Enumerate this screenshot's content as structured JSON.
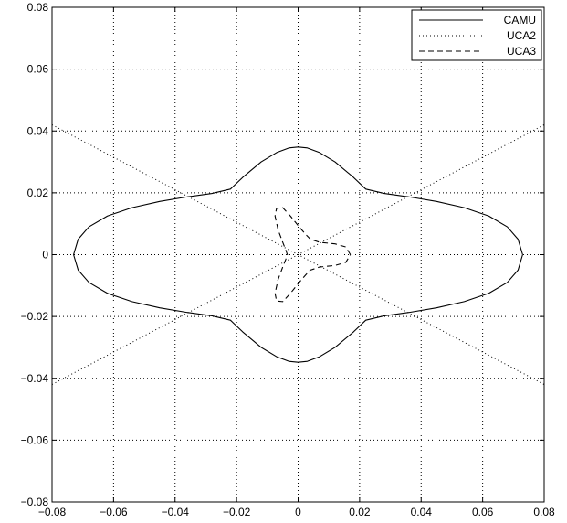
{
  "chart_data": {
    "type": "line",
    "title": "",
    "xlabel": "",
    "ylabel": "",
    "xlim": [
      -0.08,
      0.08
    ],
    "ylim": [
      -0.08,
      0.08
    ],
    "grid": true,
    "grid_style": "dotted",
    "legend_position": "top-right",
    "xticks": [
      {
        "value": -0.08,
        "label": "−0.08"
      },
      {
        "value": -0.06,
        "label": "−0.06"
      },
      {
        "value": -0.04,
        "label": "−0.04"
      },
      {
        "value": -0.02,
        "label": "−0.02"
      },
      {
        "value": 0,
        "label": "0"
      },
      {
        "value": 0.02,
        "label": "0.02"
      },
      {
        "value": 0.04,
        "label": "0.04"
      },
      {
        "value": 0.06,
        "label": "0.06"
      },
      {
        "value": 0.08,
        "label": "0.08"
      }
    ],
    "yticks": [
      {
        "value": -0.08,
        "label": "−0.08"
      },
      {
        "value": -0.06,
        "label": "−0.06"
      },
      {
        "value": -0.04,
        "label": "−0.04"
      },
      {
        "value": -0.02,
        "label": "−0.02"
      },
      {
        "value": 0,
        "label": "0"
      },
      {
        "value": 0.02,
        "label": "0.02"
      },
      {
        "value": 0.04,
        "label": "0.04"
      },
      {
        "value": 0.06,
        "label": "0.06"
      },
      {
        "value": 0.08,
        "label": "0.08"
      }
    ],
    "series": [
      {
        "name": "CAMU",
        "style": "solid",
        "color": "#000000",
        "x": [
          0.073,
          0.0715,
          0.068,
          0.062,
          0.054,
          0.045,
          0.036,
          0.028,
          0.022,
          0.018,
          0.012,
          0.007,
          0.003,
          0,
          -0.003,
          -0.007,
          -0.012,
          -0.018,
          -0.022,
          -0.028,
          -0.036,
          -0.045,
          -0.054,
          -0.062,
          -0.068,
          -0.0715,
          -0.073,
          -0.0715,
          -0.068,
          -0.062,
          -0.054,
          -0.045,
          -0.036,
          -0.028,
          -0.022,
          -0.018,
          -0.012,
          -0.007,
          -0.003,
          0,
          0.003,
          0.007,
          0.012,
          0.018,
          0.022,
          0.028,
          0.036,
          0.045,
          0.054,
          0.062,
          0.068,
          0.0715,
          0.073
        ],
        "y": [
          0,
          0.005,
          0.009,
          0.0125,
          0.0152,
          0.0172,
          0.0187,
          0.0198,
          0.0212,
          0.025,
          0.03,
          0.033,
          0.0345,
          0.0348,
          0.0345,
          0.033,
          0.03,
          0.025,
          0.0212,
          0.0198,
          0.0187,
          0.0172,
          0.0152,
          0.0125,
          0.009,
          0.005,
          0,
          -0.005,
          -0.009,
          -0.0125,
          -0.0152,
          -0.0172,
          -0.0187,
          -0.0198,
          -0.0212,
          -0.025,
          -0.03,
          -0.033,
          -0.0345,
          -0.0348,
          -0.0345,
          -0.033,
          -0.03,
          -0.025,
          -0.0212,
          -0.0198,
          -0.0187,
          -0.0172,
          -0.0152,
          -0.0125,
          -0.009,
          -0.005,
          0
        ]
      },
      {
        "name": "UCA2",
        "style": "dotted",
        "color": "#000000",
        "x": [
          -0.08,
          0.08
        ],
        "y": [
          0.042,
          -0.042
        ]
      },
      {
        "name": "UCA2-branch-2",
        "style": "dotted",
        "color": "#000000",
        "x": [
          -0.08,
          0.08
        ],
        "y": [
          -0.042,
          0.042
        ]
      },
      {
        "name": "UCA3",
        "style": "dashed",
        "color": "#000000",
        "x": [
          0.017,
          0.0155,
          0.012,
          0.007,
          0.004,
          0.0025,
          0.0005,
          -0.0025,
          -0.005,
          -0.007,
          -0.0075,
          -0.0065,
          -0.005,
          -0.004,
          -0.0035,
          -0.004,
          -0.005,
          -0.0065,
          -0.0075,
          -0.007,
          -0.005,
          -0.0025,
          0.0005,
          0.0025,
          0.004,
          0.007,
          0.012,
          0.0155,
          0.017
        ],
        "y": [
          0,
          0.0025,
          0.0035,
          0.004,
          0.005,
          0.0065,
          0.0088,
          0.0125,
          0.0152,
          0.015,
          0.0125,
          0.008,
          0.004,
          0.0015,
          0,
          -0.0015,
          -0.004,
          -0.008,
          -0.0125,
          -0.015,
          -0.0152,
          -0.0125,
          -0.0088,
          -0.0065,
          -0.005,
          -0.004,
          -0.0035,
          -0.0025,
          0
        ]
      }
    ],
    "legend": [
      {
        "label": "CAMU",
        "style": "solid"
      },
      {
        "label": "UCA2",
        "style": "dotted"
      },
      {
        "label": "UCA3",
        "style": "dashed"
      }
    ]
  }
}
